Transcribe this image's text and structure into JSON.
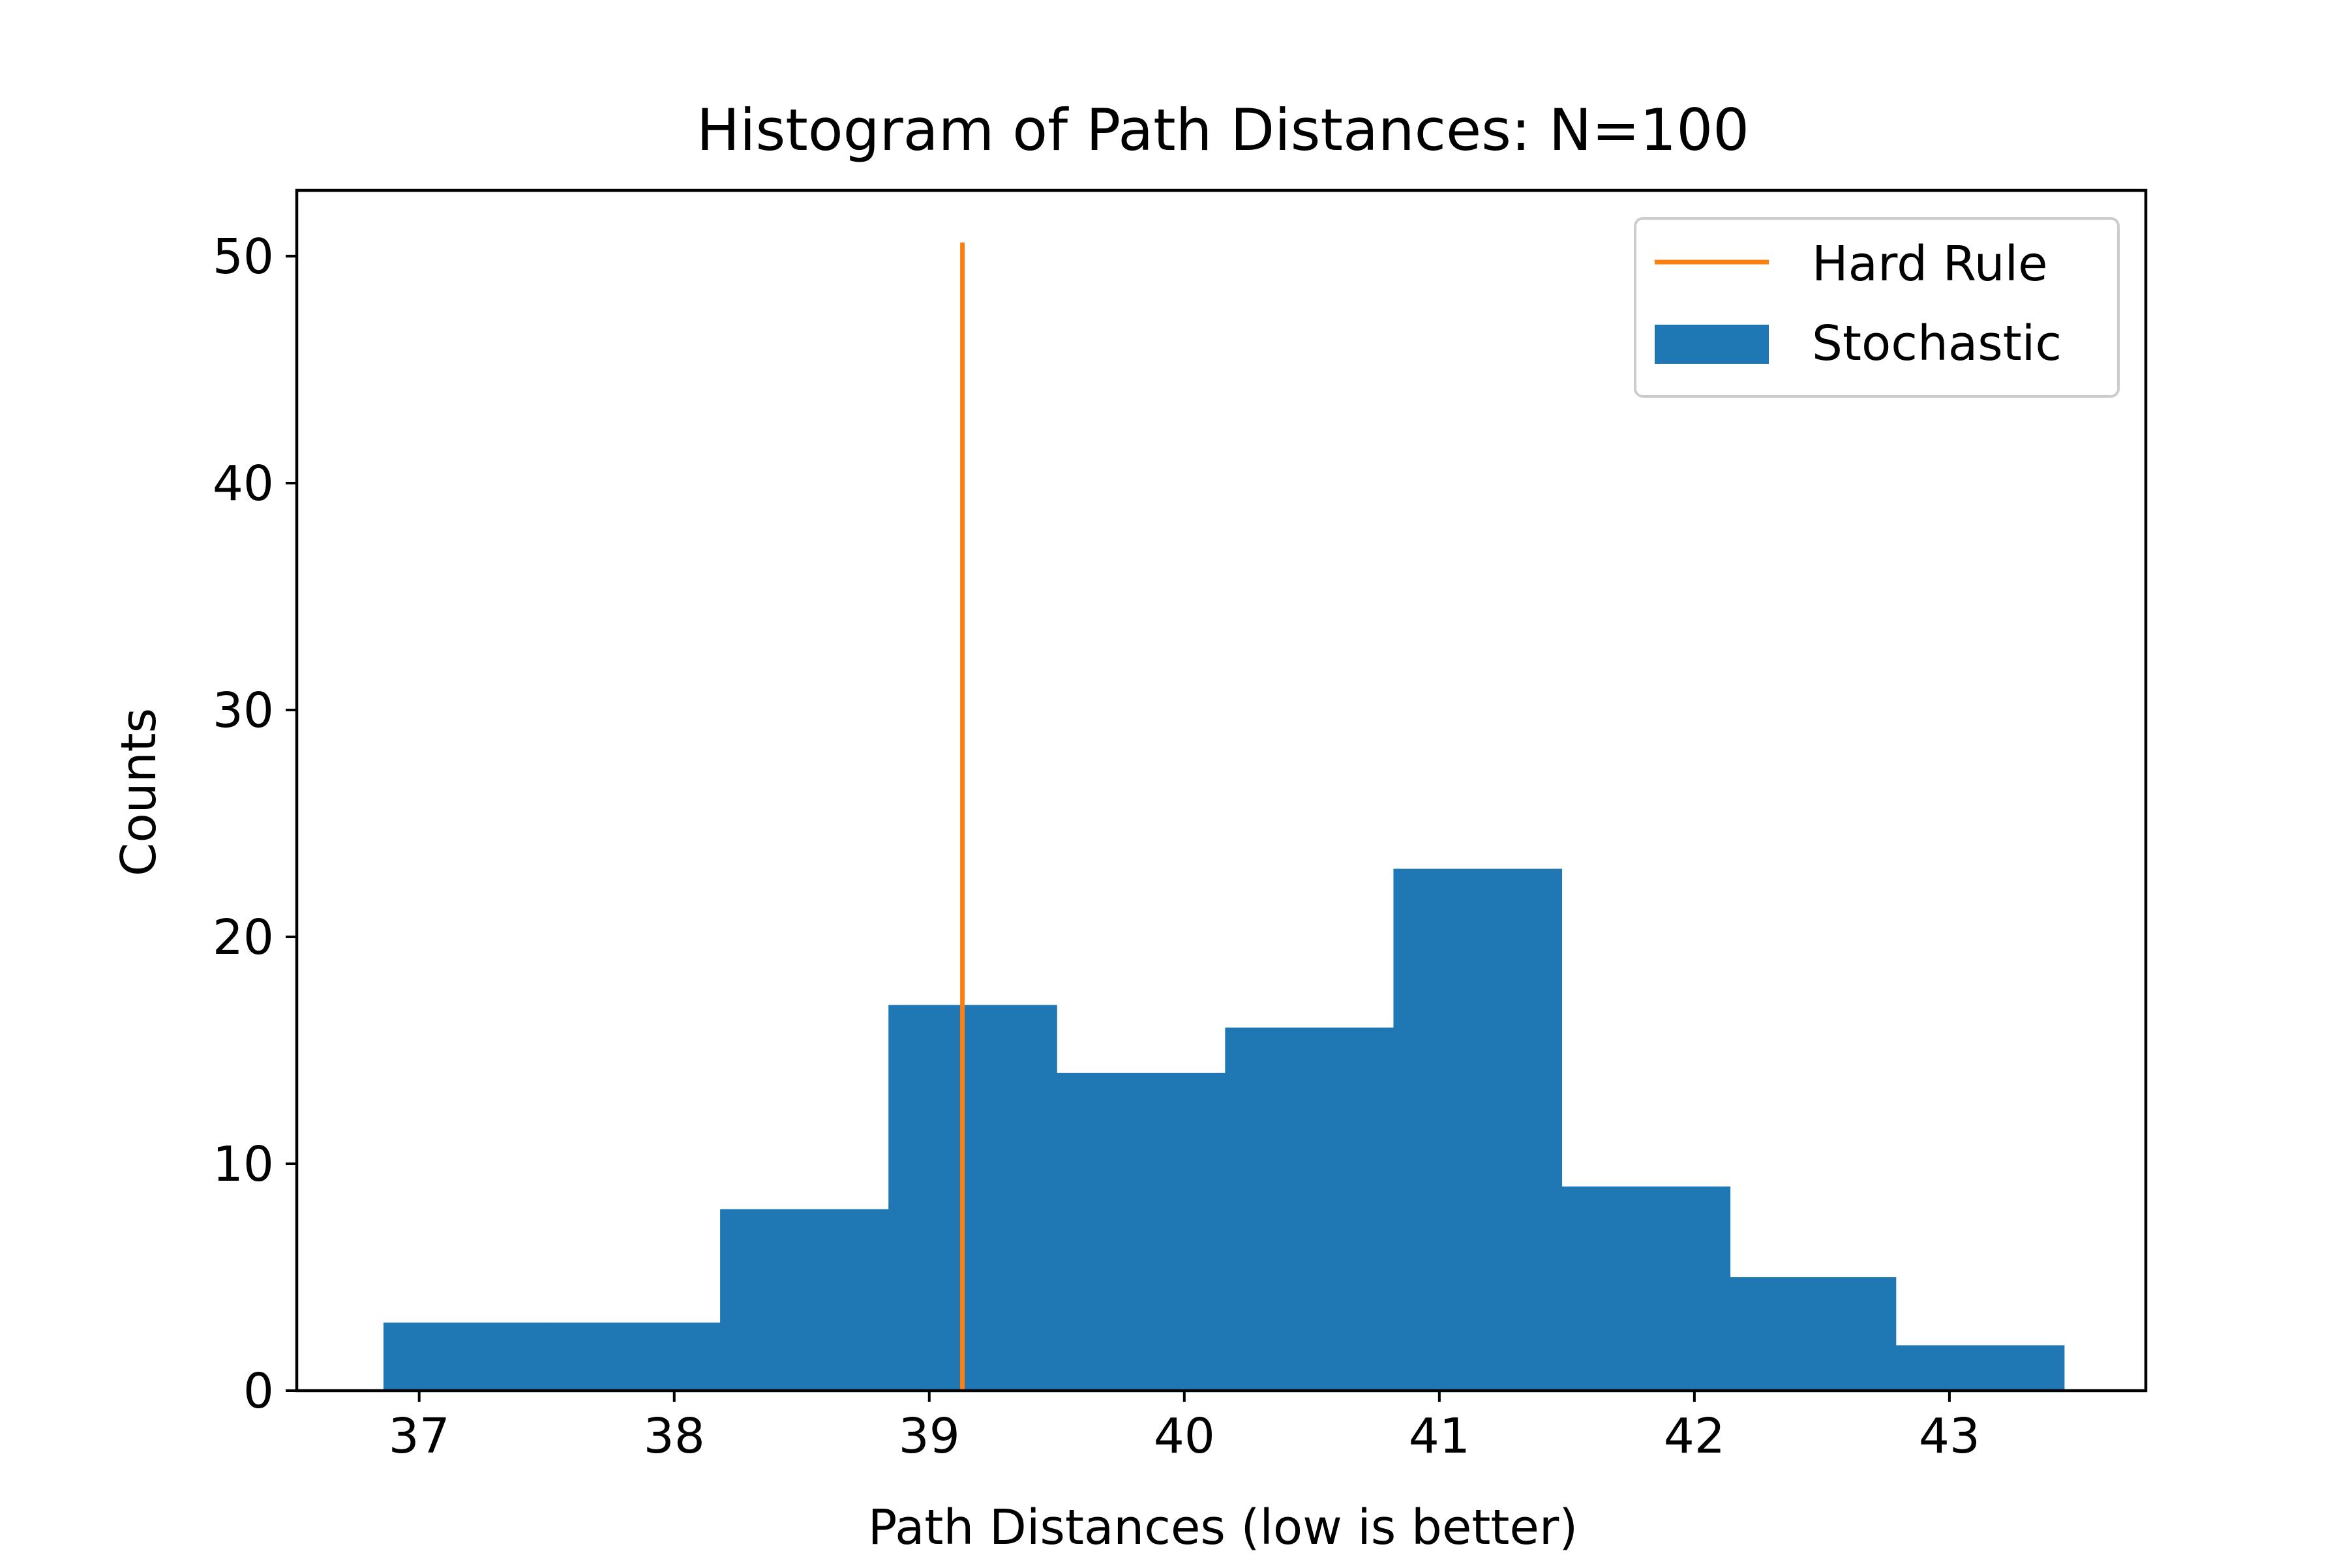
{
  "chart_data": {
    "type": "bar",
    "title": "Histogram of Path Distances: N=100",
    "xlabel": "Path Distances (low is better)",
    "ylabel": "Counts",
    "xlim": [
      36.52,
      43.77
    ],
    "ylim": [
      0,
      52.9
    ],
    "xticks": [
      37,
      38,
      39,
      40,
      41,
      42,
      43
    ],
    "yticks": [
      0,
      10,
      20,
      30,
      40,
      50
    ],
    "bins": [
      {
        "start": 36.86,
        "end": 37.52,
        "count": 3
      },
      {
        "start": 37.52,
        "end": 38.18,
        "count": 3
      },
      {
        "start": 38.18,
        "end": 38.84,
        "count": 8
      },
      {
        "start": 38.84,
        "end": 39.5,
        "count": 17
      },
      {
        "start": 39.5,
        "end": 40.16,
        "count": 14
      },
      {
        "start": 40.16,
        "end": 40.82,
        "count": 16
      },
      {
        "start": 40.82,
        "end": 41.48,
        "count": 23
      },
      {
        "start": 41.48,
        "end": 42.14,
        "count": 9
      },
      {
        "start": 42.14,
        "end": 42.79,
        "count": 5
      },
      {
        "start": 42.79,
        "end": 43.45,
        "count": 2
      }
    ],
    "reference_line": {
      "x": 39.13,
      "y_max": 50.6
    },
    "grid": false,
    "legend_position": "top-right",
    "legend": [
      {
        "label": "Hard Rule",
        "kind": "line",
        "color": "#ff7f0e"
      },
      {
        "label": "Stochastic",
        "kind": "patch",
        "color": "#1f77b4"
      }
    ],
    "colors": {
      "bars": "#1f77b4",
      "line": "#ff7f0e"
    }
  }
}
